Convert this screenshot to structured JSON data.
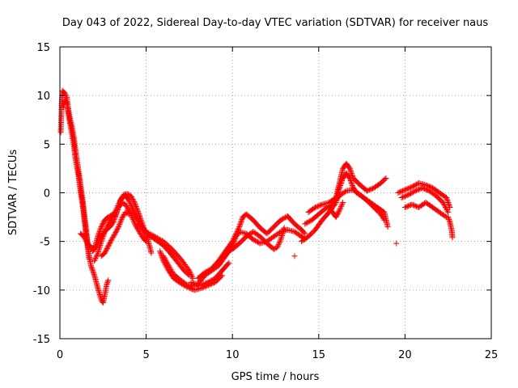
{
  "chart_data": {
    "type": "scatter",
    "title": "Day 043 of 2022, Sidereal Day-to-day VTEC variation (SDTVAR) for receiver naus",
    "xlabel": "GPS time / hours",
    "ylabel": "SDTVAR / TECUs",
    "xlim": [
      0,
      25
    ],
    "ylim": [
      -15,
      15
    ],
    "xticks": [
      0,
      5,
      10,
      15,
      20,
      25
    ],
    "yticks": [
      -15,
      -10,
      -5,
      0,
      5,
      10,
      15
    ],
    "grid": true,
    "marker": "+",
    "colors": {
      "series": "#ff0000",
      "grid": "#a0a0a0",
      "axis": "#000000"
    },
    "series": [
      {
        "name": "SDTVAR",
        "tracks": [
          [
            [
              0.05,
              6.2
            ],
            [
              0.1,
              9.0
            ],
            [
              0.15,
              10.5
            ],
            [
              0.3,
              10.2
            ],
            [
              0.4,
              9.8
            ],
            [
              0.5,
              8.5
            ],
            [
              0.6,
              7.5
            ],
            [
              0.7,
              6.8
            ],
            [
              0.8,
              5.8
            ],
            [
              0.9,
              4.5
            ],
            [
              1.0,
              3.2
            ],
            [
              1.1,
              2.0
            ],
            [
              1.2,
              0.8
            ],
            [
              1.3,
              -0.5
            ],
            [
              1.4,
              -2.0
            ],
            [
              1.5,
              -3.5
            ],
            [
              1.6,
              -5.0
            ],
            [
              1.7,
              -6.5
            ],
            [
              1.8,
              -7.5
            ],
            [
              2.0,
              -8.5
            ],
            [
              2.2,
              -9.8
            ],
            [
              2.4,
              -11.0
            ],
            [
              2.5,
              -11.3
            ],
            [
              2.6,
              -10.5
            ],
            [
              2.7,
              -9.5
            ],
            [
              2.8,
              -9.0
            ]
          ],
          [
            [
              0.2,
              8.8
            ],
            [
              0.3,
              9.5
            ],
            [
              0.4,
              9.2
            ],
            [
              0.5,
              8.0
            ],
            [
              0.6,
              7.0
            ],
            [
              0.7,
              6.0
            ],
            [
              0.8,
              5.0
            ],
            [
              0.9,
              3.5
            ],
            [
              1.0,
              2.5
            ],
            [
              1.1,
              1.5
            ],
            [
              1.2,
              0.0
            ],
            [
              1.3,
              -1.0
            ],
            [
              1.4,
              -2.5
            ],
            [
              1.5,
              -4.0
            ],
            [
              1.6,
              -5.5
            ],
            [
              1.7,
              -6.8
            ]
          ],
          [
            [
              1.2,
              -4.2
            ],
            [
              1.4,
              -4.5
            ],
            [
              1.6,
              -5.2
            ],
            [
              1.8,
              -5.6
            ],
            [
              2.0,
              -5.8
            ],
            [
              2.2,
              -4.5
            ],
            [
              2.4,
              -3.5
            ],
            [
              2.6,
              -2.8
            ],
            [
              2.8,
              -2.5
            ],
            [
              3.0,
              -2.3
            ],
            [
              3.2,
              -2.0
            ],
            [
              3.4,
              -1.2
            ],
            [
              3.6,
              -0.5
            ],
            [
              3.8,
              -0.3
            ],
            [
              4.0,
              -0.8
            ],
            [
              4.2,
              -1.6
            ],
            [
              4.4,
              -2.5
            ],
            [
              4.6,
              -3.0
            ],
            [
              4.8,
              -3.6
            ],
            [
              5.0,
              -4.3
            ],
            [
              5.2,
              -5.5
            ],
            [
              5.3,
              -6.2
            ]
          ],
          [
            [
              1.9,
              -6.0
            ],
            [
              2.1,
              -5.5
            ],
            [
              2.3,
              -4.8
            ],
            [
              2.5,
              -4.2
            ],
            [
              2.7,
              -3.8
            ],
            [
              2.9,
              -3.5
            ],
            [
              3.1,
              -3.0
            ],
            [
              3.3,
              -2.0
            ],
            [
              3.5,
              -0.8
            ],
            [
              3.7,
              -0.2
            ],
            [
              3.9,
              -0.1
            ],
            [
              4.1,
              -0.3
            ],
            [
              4.3,
              -0.9
            ],
            [
              4.5,
              -1.8
            ],
            [
              4.7,
              -2.8
            ],
            [
              4.9,
              -3.8
            ],
            [
              5.1,
              -4.8
            ]
          ],
          [
            [
              2.0,
              -7.0
            ],
            [
              2.2,
              -6.2
            ],
            [
              2.4,
              -5.0
            ],
            [
              2.6,
              -4.0
            ],
            [
              2.8,
              -3.2
            ],
            [
              3.0,
              -2.6
            ],
            [
              3.2,
              -2.4
            ],
            [
              3.4,
              -1.5
            ],
            [
              3.6,
              -1.0
            ],
            [
              3.8,
              -1.2
            ],
            [
              4.0,
              -1.8
            ],
            [
              4.2,
              -2.6
            ],
            [
              4.4,
              -3.4
            ],
            [
              4.6,
              -4.0
            ],
            [
              4.8,
              -4.6
            ],
            [
              5.0,
              -5.0
            ]
          ],
          [
            [
              2.4,
              -6.5
            ],
            [
              2.6,
              -6.2
            ],
            [
              2.8,
              -5.5
            ],
            [
              3.0,
              -4.8
            ],
            [
              3.2,
              -4.2
            ],
            [
              3.4,
              -3.5
            ],
            [
              3.6,
              -2.6
            ],
            [
              3.8,
              -2.0
            ],
            [
              4.0,
              -2.2
            ]
          ],
          [
            [
              4.5,
              -3.2
            ],
            [
              5.0,
              -4.0
            ],
            [
              5.5,
              -4.5
            ],
            [
              6.0,
              -5.0
            ],
            [
              6.5,
              -5.8
            ],
            [
              7.0,
              -6.8
            ],
            [
              7.5,
              -8.0
            ],
            [
              7.7,
              -8.8
            ]
          ],
          [
            [
              4.8,
              -3.8
            ],
            [
              5.2,
              -4.4
            ],
            [
              5.6,
              -4.9
            ],
            [
              6.0,
              -5.4
            ],
            [
              6.4,
              -6.2
            ],
            [
              6.8,
              -7.1
            ],
            [
              7.2,
              -8.0
            ],
            [
              7.5,
              -8.5
            ]
          ],
          [
            [
              5.8,
              -6.0
            ],
            [
              6.0,
              -7.0
            ],
            [
              6.3,
              -8.0
            ],
            [
              6.6,
              -8.8
            ],
            [
              7.0,
              -9.3
            ],
            [
              7.4,
              -9.7
            ],
            [
              7.8,
              -10.0
            ],
            [
              8.2,
              -9.8
            ],
            [
              8.6,
              -9.5
            ],
            [
              9.0,
              -9.2
            ],
            [
              9.4,
              -8.5
            ]
          ],
          [
            [
              6.0,
              -6.5
            ],
            [
              6.3,
              -7.5
            ],
            [
              6.6,
              -8.4
            ],
            [
              7.0,
              -9.0
            ],
            [
              7.4,
              -9.5
            ],
            [
              7.8,
              -9.6
            ],
            [
              8.2,
              -9.5
            ],
            [
              8.6,
              -9.2
            ],
            [
              9.0,
              -8.8
            ],
            [
              9.4,
              -8.0
            ],
            [
              9.8,
              -7.2
            ]
          ],
          [
            [
              7.6,
              -9.2
            ],
            [
              8.0,
              -9.4
            ],
            [
              8.4,
              -8.5
            ],
            [
              8.8,
              -8.0
            ],
            [
              9.2,
              -7.5
            ],
            [
              9.6,
              -6.5
            ],
            [
              10.0,
              -5.5
            ],
            [
              10.2,
              -4.5
            ],
            [
              10.4,
              -4.0
            ],
            [
              10.8,
              -4.2
            ],
            [
              11.2,
              -4.8
            ],
            [
              11.6,
              -5.2
            ],
            [
              12.0,
              -5.0
            ],
            [
              12.4,
              -4.5
            ],
            [
              12.8,
              -4.0
            ],
            [
              13.2,
              -3.8
            ],
            [
              13.6,
              -4.0
            ],
            [
              14.0,
              -4.5
            ],
            [
              14.2,
              -4.8
            ]
          ],
          [
            [
              8.0,
              -8.8
            ],
            [
              8.4,
              -8.2
            ],
            [
              8.8,
              -7.8
            ],
            [
              9.2,
              -7.0
            ],
            [
              9.6,
              -6.0
            ],
            [
              10.0,
              -5.0
            ],
            [
              10.4,
              -3.5
            ],
            [
              10.6,
              -2.5
            ],
            [
              10.8,
              -2.2
            ],
            [
              11.2,
              -2.8
            ],
            [
              11.6,
              -3.6
            ],
            [
              12.0,
              -4.2
            ],
            [
              12.4,
              -3.5
            ],
            [
              12.8,
              -2.8
            ],
            [
              13.2,
              -2.4
            ],
            [
              13.6,
              -3.2
            ],
            [
              14.0,
              -3.8
            ],
            [
              14.2,
              -4.2
            ]
          ],
          [
            [
              9.2,
              -7.2
            ],
            [
              9.6,
              -6.2
            ],
            [
              10.0,
              -5.8
            ],
            [
              10.4,
              -5.2
            ],
            [
              10.8,
              -4.5
            ],
            [
              11.2,
              -4.0
            ],
            [
              11.6,
              -4.5
            ],
            [
              12.0,
              -5.2
            ],
            [
              12.4,
              -5.8
            ],
            [
              12.6,
              -5.6
            ],
            [
              12.8,
              -4.8
            ],
            [
              13.0,
              -3.6
            ]
          ],
          [
            [
              13.6,
              -6.5
            ]
          ],
          [
            [
              14.0,
              -5.0
            ],
            [
              14.4,
              -4.5
            ],
            [
              14.8,
              -3.8
            ],
            [
              15.2,
              -2.8
            ],
            [
              15.6,
              -2.0
            ],
            [
              16.0,
              -1.0
            ],
            [
              16.2,
              0.5
            ],
            [
              16.4,
              1.5
            ],
            [
              16.6,
              2.0
            ],
            [
              16.8,
              1.5
            ],
            [
              17.0,
              0.5
            ],
            [
              17.2,
              0.0
            ],
            [
              17.6,
              -0.5
            ],
            [
              18.0,
              -1.0
            ],
            [
              18.4,
              -1.5
            ],
            [
              18.8,
              -2.0
            ],
            [
              19.0,
              -3.5
            ]
          ],
          [
            [
              14.4,
              -2.0
            ],
            [
              14.8,
              -1.5
            ],
            [
              15.2,
              -1.2
            ],
            [
              15.6,
              -1.0
            ],
            [
              16.0,
              -0.5
            ],
            [
              16.2,
              1.0
            ],
            [
              16.4,
              2.5
            ],
            [
              16.6,
              3.0
            ],
            [
              16.8,
              2.5
            ],
            [
              17.0,
              1.5
            ],
            [
              17.4,
              0.8
            ],
            [
              17.8,
              0.2
            ],
            [
              18.2,
              0.5
            ],
            [
              18.6,
              1.0
            ],
            [
              18.9,
              1.5
            ]
          ],
          [
            [
              14.2,
              -3.2
            ],
            [
              14.6,
              -2.8
            ],
            [
              15.0,
              -2.2
            ],
            [
              15.4,
              -1.6
            ],
            [
              15.8,
              -1.2
            ],
            [
              16.2,
              -0.3
            ],
            [
              16.6,
              0.2
            ],
            [
              17.0,
              0.3
            ],
            [
              17.4,
              -0.2
            ],
            [
              17.8,
              -0.8
            ],
            [
              18.2,
              -1.5
            ],
            [
              18.6,
              -2.2
            ],
            [
              18.8,
              -2.8
            ]
          ],
          [
            [
              15.6,
              -1.5
            ],
            [
              15.8,
              -2.0
            ],
            [
              16.0,
              -2.5
            ],
            [
              16.2,
              -1.8
            ],
            [
              16.4,
              -1.0
            ]
          ],
          [
            [
              19.5,
              -5.2
            ]
          ],
          [
            [
              19.6,
              0.0
            ],
            [
              20.0,
              0.3
            ],
            [
              20.4,
              0.6
            ],
            [
              20.8,
              1.0
            ],
            [
              21.2,
              0.8
            ],
            [
              21.6,
              0.5
            ],
            [
              22.0,
              0.0
            ],
            [
              22.4,
              -0.5
            ],
            [
              22.6,
              -1.5
            ]
          ],
          [
            [
              19.8,
              -0.5
            ],
            [
              20.2,
              -0.2
            ],
            [
              20.6,
              0.2
            ],
            [
              21.0,
              0.5
            ],
            [
              21.4,
              0.2
            ],
            [
              21.8,
              -0.3
            ],
            [
              22.2,
              -1.0
            ],
            [
              22.5,
              -2.0
            ]
          ],
          [
            [
              20.0,
              -1.5
            ],
            [
              20.4,
              -1.2
            ],
            [
              20.8,
              -1.5
            ],
            [
              21.2,
              -1.0
            ],
            [
              21.6,
              -1.5
            ],
            [
              22.0,
              -2.0
            ],
            [
              22.4,
              -2.5
            ]
          ],
          [
            [
              22.5,
              -2.5
            ],
            [
              22.6,
              -3.0
            ],
            [
              22.7,
              -3.8
            ],
            [
              22.75,
              -4.6
            ]
          ]
        ]
      }
    ]
  }
}
